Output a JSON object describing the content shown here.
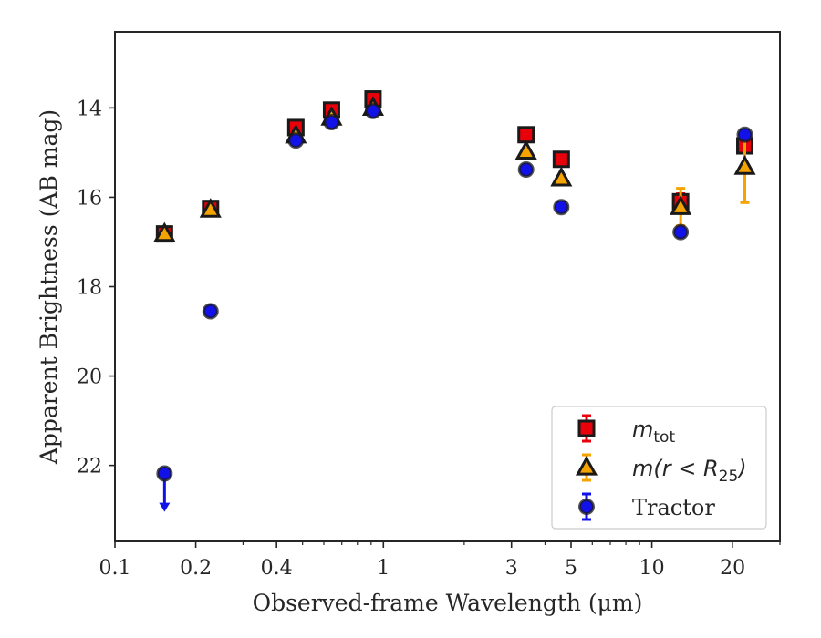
{
  "chart_data": {
    "type": "scatter",
    "xlabel": "Observed-frame Wavelength (μm)",
    "ylabel": "Apparent Brightness (AB mag)",
    "x_scale": "log",
    "xlim": [
      0.1,
      30
    ],
    "ylim": [
      23.7,
      12.3
    ],
    "y_inverted": true,
    "grid": false,
    "legend_position": "lower-right",
    "x_ticks": [
      {
        "value": 0.1,
        "label": "0.1"
      },
      {
        "value": 0.2,
        "label": "0.2"
      },
      {
        "value": 0.4,
        "label": "0.4"
      },
      {
        "value": 1,
        "label": "1"
      },
      {
        "value": 3,
        "label": "3"
      },
      {
        "value": 5,
        "label": "5"
      },
      {
        "value": 10,
        "label": "10"
      },
      {
        "value": 20,
        "label": "20"
      }
    ],
    "y_ticks": [
      {
        "value": 14,
        "label": "14"
      },
      {
        "value": 16,
        "label": "16"
      },
      {
        "value": 18,
        "label": "18"
      },
      {
        "value": 20,
        "label": "20"
      },
      {
        "value": 22,
        "label": "22"
      }
    ],
    "series": [
      {
        "name": "m_tot",
        "legend_label": {
          "base": "m",
          "sub": "tot",
          "tail": ""
        },
        "marker": "square",
        "color": "#e8000b",
        "points": [
          {
            "x": 0.153,
            "y": 16.82,
            "err": 0.05
          },
          {
            "x": 0.227,
            "y": 16.25,
            "err": 0.05
          },
          {
            "x": 0.472,
            "y": 14.44,
            "err": 0.05
          },
          {
            "x": 0.641,
            "y": 14.05,
            "err": 0.05
          },
          {
            "x": 0.915,
            "y": 13.8,
            "err": 0.05
          },
          {
            "x": 3.4,
            "y": 14.6,
            "err": 0.05
          },
          {
            "x": 4.6,
            "y": 15.15,
            "err": 0.05
          },
          {
            "x": 12.8,
            "y": 16.1,
            "err": 0.18
          },
          {
            "x": 22.2,
            "y": 14.85,
            "err": 0.08
          }
        ]
      },
      {
        "name": "m(r < R_25)",
        "legend_label": {
          "base": "m(r < R",
          "sub": "25",
          "tail": ")"
        },
        "marker": "triangle",
        "color": "#f5a300",
        "points": [
          {
            "x": 0.153,
            "y": 16.82,
            "err": 0.05
          },
          {
            "x": 0.227,
            "y": 16.28,
            "err": 0.05
          },
          {
            "x": 0.472,
            "y": 14.62,
            "err": 0.05
          },
          {
            "x": 0.641,
            "y": 14.22,
            "err": 0.05
          },
          {
            "x": 0.915,
            "y": 14.0,
            "err": 0.05
          },
          {
            "x": 3.4,
            "y": 14.98,
            "err": 0.05
          },
          {
            "x": 4.6,
            "y": 15.58,
            "err": 0.05
          },
          {
            "x": 12.8,
            "y": 16.22,
            "err": 0.42
          },
          {
            "x": 22.2,
            "y": 15.32,
            "err": 0.8
          }
        ]
      },
      {
        "name": "Tractor",
        "legend_label": {
          "base": "Tractor",
          "sub": "",
          "tail": ""
        },
        "marker": "circle",
        "color": "#1212e8",
        "points": [
          {
            "x": 0.153,
            "y": 22.18,
            "upper_limit": true,
            "arrow_to": 23.0
          },
          {
            "x": 0.227,
            "y": 18.55,
            "err": 0.05
          },
          {
            "x": 0.472,
            "y": 14.73,
            "err": 0.05
          },
          {
            "x": 0.641,
            "y": 14.32,
            "err": 0.05
          },
          {
            "x": 0.915,
            "y": 14.07,
            "err": 0.05
          },
          {
            "x": 3.4,
            "y": 15.38,
            "err": 0.05
          },
          {
            "x": 4.6,
            "y": 16.22,
            "err": 0.05
          },
          {
            "x": 12.8,
            "y": 16.78,
            "err": 0.05
          },
          {
            "x": 22.2,
            "y": 14.6,
            "err": 0.05
          }
        ]
      }
    ]
  }
}
